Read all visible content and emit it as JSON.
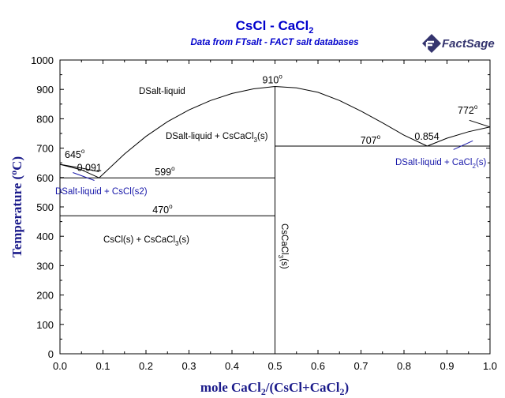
{
  "header": {
    "title_main": "CsCl - CaCl",
    "title_sub": "2",
    "subtitle": "Data from FTsalt - FACT salt databases"
  },
  "logo": {
    "text": "FactSage"
  },
  "colors": {
    "title": "#0000cc",
    "blue_label": "#1a1aaa",
    "axis": "#000000",
    "logo": "#34346e"
  },
  "axes": {
    "x_label": [
      {
        "t": "mole CaCl"
      },
      {
        "t": "2",
        "sub": true
      },
      {
        "t": "/(CsCl+CaCl"
      },
      {
        "t": "2",
        "sub": true
      },
      {
        "t": ")"
      }
    ],
    "y_label": [
      {
        "t": "Temperature ("
      },
      {
        "t": "o",
        "sup": true
      },
      {
        "t": "C)"
      }
    ]
  },
  "chart_data": {
    "type": "line",
    "title": "CsCl - CaCl2",
    "subtitle": "Data from FTsalt - FACT salt databases",
    "xlabel": "mole CaCl2/(CsCl+CaCl2)",
    "ylabel": "Temperature (°C)",
    "xlim": [
      0,
      1
    ],
    "ylim": [
      0,
      1000
    ],
    "x_ticks": [
      "0.0",
      "0.1",
      "0.2",
      "0.3",
      "0.4",
      "0.5",
      "0.6",
      "0.7",
      "0.8",
      "0.9",
      "1.0"
    ],
    "y_ticks": [
      "0",
      "100",
      "200",
      "300",
      "400",
      "500",
      "600",
      "700",
      "800",
      "900",
      "1000"
    ],
    "lines": [
      {
        "name": "liquidus-cscl-1",
        "points": [
          [
            0,
            645
          ],
          [
            0.05,
            632
          ],
          [
            0.091,
            620
          ]
        ]
      },
      {
        "name": "liquidus-cscl-2",
        "points": [
          [
            0,
            645
          ],
          [
            0.05,
            626
          ],
          [
            0.091,
            599
          ]
        ]
      },
      {
        "name": "liquidus-cscacl3",
        "points": [
          [
            0.091,
            599
          ],
          [
            0.15,
            680
          ],
          [
            0.2,
            740
          ],
          [
            0.25,
            790
          ],
          [
            0.3,
            830
          ],
          [
            0.35,
            862
          ],
          [
            0.4,
            886
          ],
          [
            0.45,
            902
          ],
          [
            0.5,
            910
          ],
          [
            0.55,
            905
          ],
          [
            0.6,
            890
          ],
          [
            0.65,
            862
          ],
          [
            0.7,
            826
          ],
          [
            0.75,
            786
          ],
          [
            0.8,
            744
          ],
          [
            0.854,
            707
          ]
        ]
      },
      {
        "name": "liquidus-cacl2",
        "points": [
          [
            0.854,
            707
          ],
          [
            0.9,
            734
          ],
          [
            0.95,
            756
          ],
          [
            1.0,
            772
          ]
        ]
      },
      {
        "name": "liquidus-cacl2-upper",
        "points": [
          [
            0.952,
            795
          ],
          [
            1.0,
            772
          ]
        ]
      },
      {
        "name": "eutectic-599",
        "points": [
          [
            0,
            599
          ],
          [
            0.5,
            599
          ]
        ]
      },
      {
        "name": "transition-470",
        "points": [
          [
            0,
            470
          ],
          [
            0.5,
            470
          ]
        ]
      },
      {
        "name": "eutectic-707",
        "points": [
          [
            0.5,
            707
          ],
          [
            1.0,
            707
          ]
        ]
      },
      {
        "name": "compound-cscacl3",
        "points": [
          [
            0.5,
            0
          ],
          [
            0.5,
            910
          ]
        ]
      }
    ],
    "annotations": [
      {
        "id": "t910",
        "text": "910",
        "x": 0.5,
        "y": 910
      },
      {
        "id": "t645",
        "text": "645",
        "x": 0.0,
        "y": 645
      },
      {
        "id": "t599",
        "text": "599",
        "x": 0.25,
        "y": 599
      },
      {
        "id": "t470",
        "text": "470",
        "x": 0.25,
        "y": 470
      },
      {
        "id": "t707",
        "text": "707",
        "x": 0.75,
        "y": 707
      },
      {
        "id": "t772",
        "text": "772",
        "x": 1.0,
        "y": 772
      },
      {
        "id": "c0091",
        "text": "0.091",
        "x": 0.091,
        "y": 620
      },
      {
        "id": "c0854",
        "text": "0.854",
        "x": 0.854,
        "y": 707
      }
    ],
    "region_labels": [
      {
        "text": "DSalt-liquid"
      },
      {
        "text": "DSalt-liquid + CsCaCl3(s)"
      },
      {
        "text": "DSalt-liquid + CsCl(s2)"
      },
      {
        "text": "DSalt-liquid + CaCl2(s)"
      },
      {
        "text": "CsCl(s) + CsCaCl3(s)"
      },
      {
        "text": "CsCaCl3(s)"
      }
    ]
  },
  "labels": {
    "region_liquid": "DSalt-liquid",
    "region_liq_cscacl3": [
      {
        "t": "DSalt-liquid + CsCaCl"
      },
      {
        "t": "3",
        "sub": true
      },
      {
        "t": "(s)"
      }
    ],
    "region_liq_cscl": "DSalt-liquid + CsCl(s2)",
    "region_liq_cacl2": [
      {
        "t": "DSalt-liquid + CaCl"
      },
      {
        "t": "2",
        "sub": true
      },
      {
        "t": "(s)"
      }
    ],
    "region_solid": [
      {
        "t": "CsCl(s) + CsCaCl"
      },
      {
        "t": "3",
        "sub": true
      },
      {
        "t": "(s)"
      }
    ],
    "compound_vertical": [
      {
        "t": "CsCaCl"
      },
      {
        "t": "3",
        "sub": true
      },
      {
        "t": "(s)"
      }
    ],
    "degree_mark": "o"
  }
}
